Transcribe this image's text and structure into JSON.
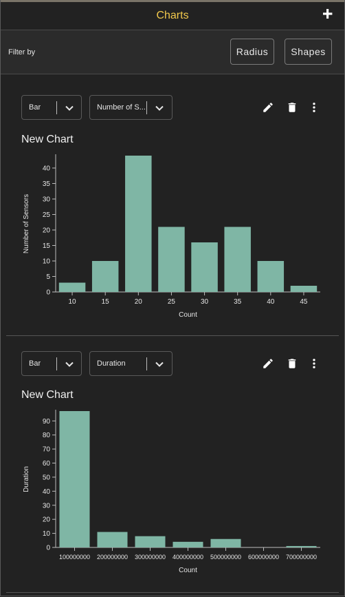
{
  "header": {
    "title": "Charts",
    "add_icon": "plus-icon"
  },
  "filter": {
    "label": "Filter by",
    "buttons": [
      "Radius",
      "Shapes"
    ]
  },
  "colors": {
    "accent": "#f2c94c",
    "bar": "#7fb6a5",
    "background": "#222222"
  },
  "charts": [
    {
      "chart_type_select": "Bar",
      "field_select": "Number of S...",
      "actions": [
        "edit-icon",
        "delete-icon",
        "more-vert-icon"
      ],
      "title": "New Chart"
    },
    {
      "chart_type_select": "Bar",
      "field_select": "Duration",
      "actions": [
        "edit-icon",
        "delete-icon",
        "more-vert-icon"
      ],
      "title": "New Chart"
    }
  ],
  "chart_data": [
    {
      "type": "bar",
      "categories": [
        "10",
        "15",
        "20",
        "25",
        "30",
        "35",
        "40",
        "45"
      ],
      "values": [
        3,
        10,
        44,
        21,
        16,
        21,
        10,
        2
      ],
      "title": "New Chart",
      "xlabel": "Count",
      "ylabel": "Number of Sensors",
      "ylim": [
        0,
        44
      ],
      "yticks": [
        0,
        5,
        10,
        15,
        20,
        25,
        30,
        35,
        40
      ],
      "grid": false
    },
    {
      "type": "bar",
      "categories": [
        "100000000",
        "200000000",
        "300000000",
        "400000000",
        "500000000",
        "600000000",
        "700000000"
      ],
      "values": [
        97,
        11,
        8,
        4,
        6,
        0,
        1
      ],
      "title": "New Chart",
      "xlabel": "Count",
      "ylabel": "Duration",
      "ylim": [
        0,
        97
      ],
      "yticks": [
        0,
        10,
        20,
        30,
        40,
        50,
        60,
        70,
        80,
        90
      ],
      "grid": false
    }
  ]
}
